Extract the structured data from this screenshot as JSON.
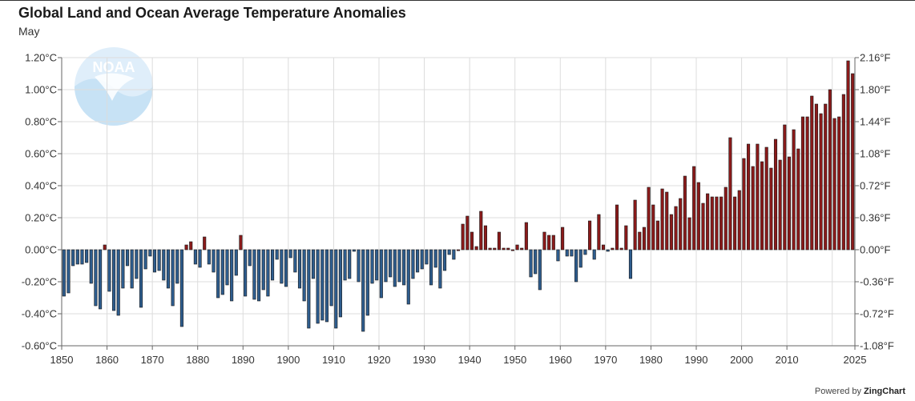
{
  "title": "Global Land and Ocean Average Temperature Anomalies",
  "subtitle": "May",
  "powered": {
    "prefix": "Powered by",
    "brand": "ZingChart"
  },
  "logo_text": "NOAA",
  "colors": {
    "positive": "#8b1a1a",
    "negative": "#2e5d8e",
    "grid": "#dcdcdc",
    "axis": "#666666"
  },
  "chart_data": {
    "type": "bar",
    "title": "Global Land and Ocean Average Temperature Anomalies",
    "subtitle": "May",
    "x_start": 1850,
    "x_end": 2025,
    "ylim": [
      -0.6,
      1.2
    ],
    "y_ticks_left": [
      "-0.60°C",
      "-0.40°C",
      "-0.20°C",
      "0.00°C",
      "0.20°C",
      "0.40°C",
      "0.60°C",
      "0.80°C",
      "1.00°C",
      "1.20°C"
    ],
    "y_ticks_right": [
      "-1.08°F",
      "-0.72°F",
      "-0.36°F",
      "0.00°F",
      "0.36°F",
      "0.72°F",
      "1.08°F",
      "1.44°F",
      "1.80°F",
      "2.16°F"
    ],
    "x_ticks": [
      "1850",
      "1860",
      "1870",
      "1880",
      "1890",
      "1900",
      "1910",
      "1920",
      "1930",
      "1940",
      "1950",
      "1960",
      "1970",
      "1980",
      "1990",
      "2000",
      "2010",
      "2025"
    ],
    "grid": true,
    "values": [
      -0.29,
      -0.27,
      -0.1,
      -0.09,
      -0.09,
      -0.08,
      -0.21,
      -0.35,
      -0.37,
      0.03,
      -0.26,
      -0.38,
      -0.41,
      -0.24,
      -0.1,
      -0.24,
      -0.18,
      -0.36,
      -0.12,
      -0.04,
      -0.14,
      -0.13,
      -0.19,
      -0.24,
      -0.35,
      -0.21,
      -0.48,
      0.03,
      0.05,
      -0.09,
      -0.11,
      0.08,
      -0.09,
      -0.14,
      -0.3,
      -0.28,
      -0.22,
      -0.32,
      -0.16,
      0.09,
      -0.29,
      -0.1,
      -0.31,
      -0.32,
      -0.25,
      -0.29,
      -0.19,
      -0.06,
      -0.21,
      -0.23,
      -0.05,
      -0.14,
      -0.24,
      -0.32,
      -0.49,
      -0.18,
      -0.46,
      -0.44,
      -0.45,
      -0.35,
      -0.49,
      -0.42,
      -0.19,
      -0.18,
      -0.01,
      -0.2,
      -0.51,
      -0.41,
      -0.21,
      -0.19,
      -0.3,
      -0.2,
      -0.17,
      -0.23,
      -0.2,
      -0.22,
      -0.34,
      -0.18,
      -0.14,
      -0.12,
      -0.09,
      -0.22,
      -0.11,
      -0.24,
      -0.13,
      -0.03,
      -0.06,
      0.0,
      0.16,
      0.21,
      0.11,
      0.02,
      0.24,
      0.15,
      0.01,
      0.01,
      0.11,
      0.01,
      0.01,
      0.0,
      0.03,
      0.01,
      0.17,
      -0.17,
      -0.15,
      -0.25,
      0.11,
      0.09,
      0.09,
      -0.07,
      0.14,
      -0.04,
      -0.04,
      -0.2,
      -0.11,
      -0.03,
      0.18,
      -0.06,
      0.22,
      0.03,
      -0.01,
      0.01,
      0.28,
      0.01,
      0.15,
      -0.18,
      0.31,
      0.11,
      0.14,
      0.39,
      0.28,
      0.18,
      0.38,
      0.36,
      0.22,
      0.27,
      0.32,
      0.46,
      0.2,
      0.52,
      0.42,
      0.29,
      0.35,
      0.33,
      0.33,
      0.33,
      0.39,
      0.7,
      0.33,
      0.37,
      0.57,
      0.66,
      0.52,
      0.66,
      0.55,
      0.64,
      0.51,
      0.69,
      0.56,
      0.78,
      0.58,
      0.75,
      0.63,
      0.83,
      0.83,
      0.96,
      0.91,
      0.85,
      0.91,
      1.0,
      0.82,
      0.83,
      0.97,
      1.18,
      1.1
    ]
  }
}
